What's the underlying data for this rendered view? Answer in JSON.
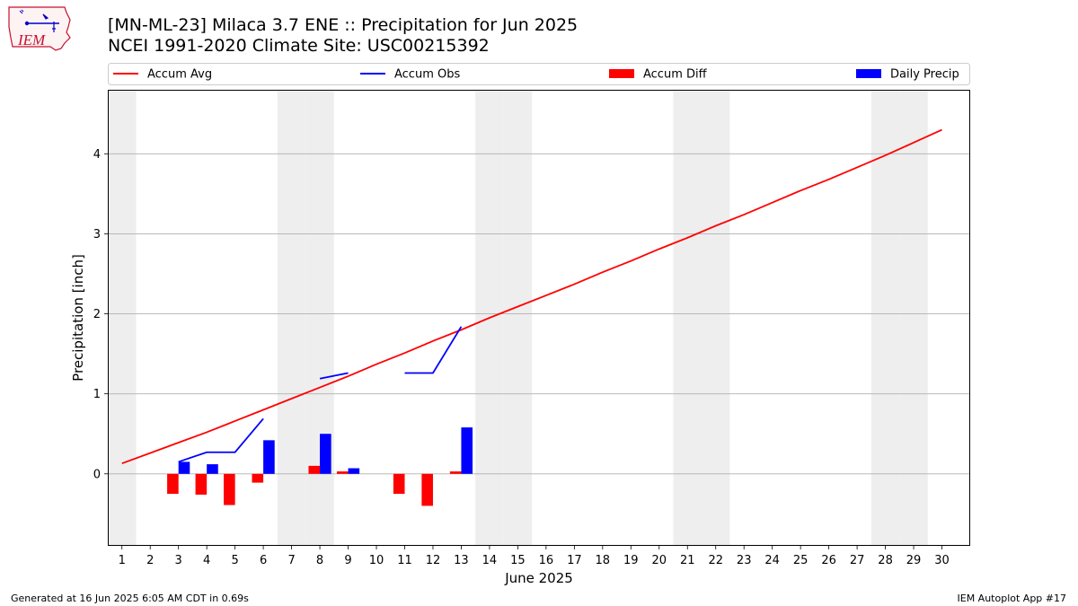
{
  "header": {
    "title_line1": "[MN-ML-23] Milaca 3.7 ENE :: Precipitation for Jun 2025",
    "title_line2": "NCEI 1991-2020 Climate Site: USC00215392",
    "logo_text": "IEM"
  },
  "footer": {
    "generated": "Generated at 16 Jun 2025 6:05 AM CDT in 0.69s",
    "app": "IEM Autoplot App #17"
  },
  "colors": {
    "accum_avg": "#ff0000",
    "accum_obs": "#0000ff",
    "accum_diff": "#ff0000",
    "daily_precip": "#0000ff",
    "weekend_shade": "#eeeeee",
    "grid": "#b0b0b0"
  },
  "chart_data": {
    "type": "bar",
    "xlabel": "June 2025",
    "ylabel": "Precipitation [inch]",
    "xlim": [
      0.5,
      31
    ],
    "ylim": [
      -0.9,
      4.8
    ],
    "yticks": [
      0,
      1,
      2,
      3,
      4
    ],
    "grid": "horizontal",
    "legend_placement": "top",
    "days": [
      1,
      2,
      3,
      4,
      5,
      6,
      7,
      8,
      9,
      10,
      11,
      12,
      13,
      14,
      15,
      16,
      17,
      18,
      19,
      20,
      21,
      22,
      23,
      24,
      25,
      26,
      27,
      28,
      29,
      30
    ],
    "weekend_days": [
      1,
      7,
      8,
      14,
      15,
      21,
      22,
      28,
      29
    ],
    "legend": [
      {
        "label": "Accum Avg",
        "kind": "line",
        "color": "#ff0000"
      },
      {
        "label": "Accum Obs",
        "kind": "line",
        "color": "#0000ff"
      },
      {
        "label": "Accum Diff",
        "kind": "bar",
        "color": "#ff0000"
      },
      {
        "label": "Daily Precip",
        "kind": "bar",
        "color": "#0000ff"
      }
    ],
    "series": [
      {
        "name": "Accum Avg",
        "kind": "line",
        "values": [
          0.13,
          0.26,
          0.39,
          0.52,
          0.66,
          0.8,
          0.94,
          1.08,
          1.22,
          1.37,
          1.51,
          1.66,
          1.8,
          1.95,
          2.09,
          2.23,
          2.37,
          2.52,
          2.66,
          2.81,
          2.95,
          3.1,
          3.24,
          3.39,
          3.54,
          3.68,
          3.83,
          3.98,
          4.14,
          4.3
        ]
      },
      {
        "name": "Accum Obs",
        "kind": "line",
        "values": [
          null,
          null,
          0.15,
          0.27,
          0.27,
          0.69,
          null,
          1.19,
          1.26,
          null,
          1.26,
          1.26,
          1.84,
          null,
          null,
          null,
          null,
          null,
          null,
          null,
          null,
          null,
          null,
          null,
          null,
          null,
          null,
          null,
          null,
          null
        ]
      },
      {
        "name": "Accum Diff",
        "kind": "bar",
        "values": [
          null,
          null,
          -0.25,
          -0.26,
          -0.39,
          -0.11,
          null,
          0.1,
          0.03,
          null,
          -0.25,
          -0.4,
          0.03,
          null,
          null,
          null,
          null,
          null,
          null,
          null,
          null,
          null,
          null,
          null,
          null,
          null,
          null,
          null,
          null,
          null
        ]
      },
      {
        "name": "Daily Precip",
        "kind": "bar",
        "values": [
          null,
          null,
          0.15,
          0.12,
          0.0,
          0.42,
          null,
          0.5,
          0.07,
          null,
          0.0,
          0.0,
          0.58,
          null,
          null,
          null,
          null,
          null,
          null,
          null,
          null,
          null,
          null,
          null,
          null,
          null,
          null,
          null,
          null,
          null
        ]
      }
    ]
  }
}
